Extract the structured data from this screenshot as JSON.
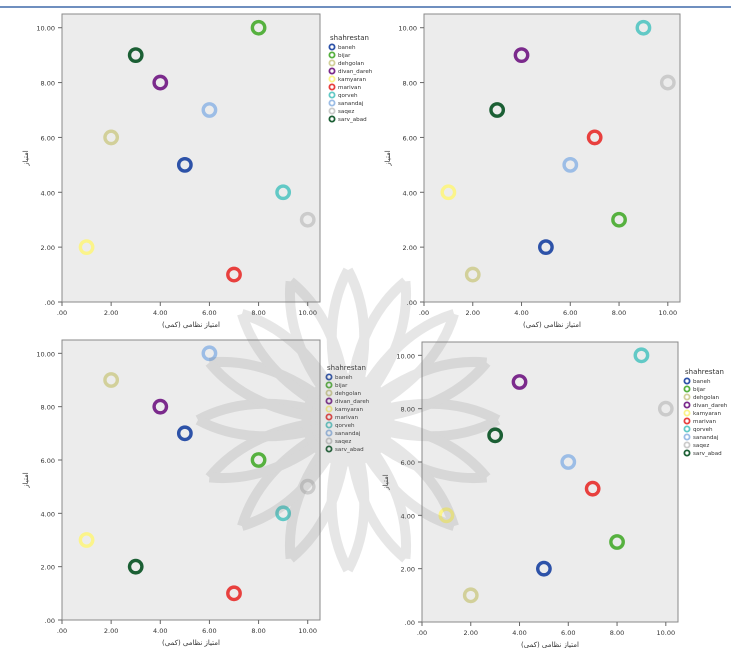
{
  "legend_title": "shahrestan",
  "legend_entries": [
    "baneh",
    "bijar",
    "dehgolan",
    "divan_dareh",
    "kamyaran",
    "marivan",
    "qorveh",
    "sanandaj",
    "saqez",
    "sarv_abad"
  ],
  "colors": {
    "baneh": "#2d52a8",
    "bijar": "#56b13f",
    "dehgolan": "#d2d09a",
    "divan_dareh": "#7b2a8c",
    "kamyaran": "#fbf48a",
    "marivan": "#e8403e",
    "qorveh": "#62c9c6",
    "sanandaj": "#9cbde6",
    "saqez": "#cbcbcb",
    "sarv_abad": "#1b5f34",
    "plot_bg": "#ececec",
    "header_line": "#6f8fbf"
  },
  "chart_data": [
    {
      "type": "scatter",
      "xlabel": "امتیاز نظامی (کمی)",
      "ylabel": "امتیاز",
      "xlim": [
        0,
        10.5
      ],
      "ylim": [
        0,
        10.5
      ],
      "xticks": [
        ".00",
        "2.00",
        "4.00",
        "6.00",
        "8.00",
        "10.00"
      ],
      "yticks": [
        ".00",
        "2.00",
        "4.00",
        "6.00",
        "8.00",
        "10.00"
      ],
      "points": [
        {
          "series": "baneh",
          "x": 5,
          "y": 5
        },
        {
          "series": "bijar",
          "x": 8,
          "y": 10
        },
        {
          "series": "dehgolan",
          "x": 2,
          "y": 6
        },
        {
          "series": "divan_dareh",
          "x": 4,
          "y": 8
        },
        {
          "series": "kamyaran",
          "x": 1,
          "y": 2
        },
        {
          "series": "marivan",
          "x": 7,
          "y": 1
        },
        {
          "series": "qorveh",
          "x": 9,
          "y": 4
        },
        {
          "series": "sanandaj",
          "x": 6,
          "y": 7
        },
        {
          "series": "saqez",
          "x": 10,
          "y": 3
        },
        {
          "series": "sarv_abad",
          "x": 3,
          "y": 9
        }
      ]
    },
    {
      "type": "scatter",
      "xlabel": "امتیاز نظامی (کمی)",
      "ylabel": "امتیاز",
      "xlim": [
        0,
        10.5
      ],
      "ylim": [
        0,
        10.5
      ],
      "xticks": [
        ".00",
        "2.00",
        "4.00",
        "6.00",
        "8.00",
        "10.00"
      ],
      "yticks": [
        ".00",
        "2.00",
        "4.00",
        "6.00",
        "8.00",
        "10.00"
      ],
      "points": [
        {
          "series": "baneh",
          "x": 5,
          "y": 2
        },
        {
          "series": "bijar",
          "x": 8,
          "y": 3
        },
        {
          "series": "dehgolan",
          "x": 2,
          "y": 1
        },
        {
          "series": "divan_dareh",
          "x": 4,
          "y": 9
        },
        {
          "series": "kamyaran",
          "x": 1,
          "y": 4
        },
        {
          "series": "marivan",
          "x": 7,
          "y": 6
        },
        {
          "series": "qorveh",
          "x": 9,
          "y": 10
        },
        {
          "series": "sanandaj",
          "x": 6,
          "y": 5
        },
        {
          "series": "saqez",
          "x": 10,
          "y": 8
        },
        {
          "series": "sarv_abad",
          "x": 3,
          "y": 7
        }
      ]
    },
    {
      "type": "scatter",
      "xlabel": "امتیاز نظامی (کمی)",
      "ylabel": "امتیاز",
      "xlim": [
        0,
        10.5
      ],
      "ylim": [
        0,
        10.5
      ],
      "xticks": [
        ".00",
        "2.00",
        "4.00",
        "6.00",
        "8.00",
        "10.00"
      ],
      "yticks": [
        ".00",
        "2.00",
        "4.00",
        "6.00",
        "8.00",
        "10.00"
      ],
      "points": [
        {
          "series": "baneh",
          "x": 5,
          "y": 7
        },
        {
          "series": "bijar",
          "x": 8,
          "y": 6
        },
        {
          "series": "dehgolan",
          "x": 2,
          "y": 9
        },
        {
          "series": "divan_dareh",
          "x": 4,
          "y": 8
        },
        {
          "series": "kamyaran",
          "x": 1,
          "y": 3
        },
        {
          "series": "marivan",
          "x": 7,
          "y": 1
        },
        {
          "series": "qorveh",
          "x": 9,
          "y": 4
        },
        {
          "series": "sanandaj",
          "x": 6,
          "y": 10
        },
        {
          "series": "saqez",
          "x": 10,
          "y": 5
        },
        {
          "series": "sarv_abad",
          "x": 3,
          "y": 2
        }
      ]
    },
    {
      "type": "scatter",
      "xlabel": "امتیاز نظامی (کمی)",
      "ylabel": "امتیاز",
      "xlim": [
        0,
        10.5
      ],
      "ylim": [
        0,
        10.5
      ],
      "xticks": [
        ".00",
        "2.00",
        "4.00",
        "6.00",
        "8.00",
        "10.00"
      ],
      "yticks": [
        ".00",
        "2.00",
        "4.00",
        "6.00",
        "8.00",
        "10.00"
      ],
      "points": [
        {
          "series": "baneh",
          "x": 5,
          "y": 2
        },
        {
          "series": "bijar",
          "x": 8,
          "y": 3
        },
        {
          "series": "dehgolan",
          "x": 2,
          "y": 1
        },
        {
          "series": "divan_dareh",
          "x": 4,
          "y": 9
        },
        {
          "series": "kamyaran",
          "x": 1,
          "y": 4
        },
        {
          "series": "marivan",
          "x": 7,
          "y": 5
        },
        {
          "series": "qorveh",
          "x": 9,
          "y": 10
        },
        {
          "series": "sanandaj",
          "x": 6,
          "y": 6
        },
        {
          "series": "saqez",
          "x": 10,
          "y": 8
        },
        {
          "series": "sarv_abad",
          "x": 3,
          "y": 7
        }
      ]
    }
  ]
}
